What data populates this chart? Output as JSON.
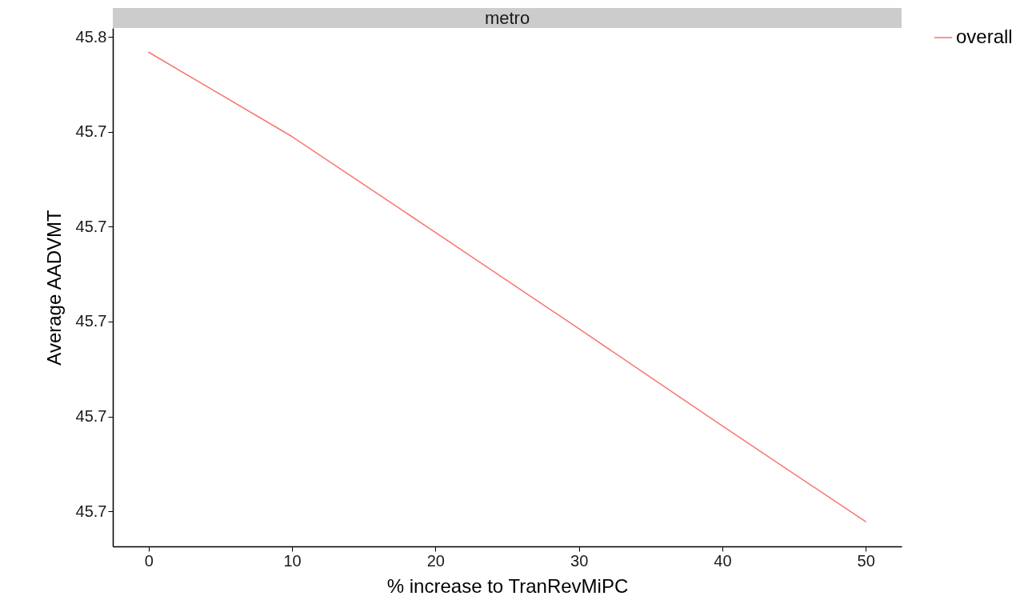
{
  "chart_data": {
    "type": "line",
    "title": "metro",
    "xlabel": "% increase to  TranRevMiPC",
    "ylabel": "Average  AADVMT",
    "legend": "right",
    "grid": false,
    "x": [
      0,
      10,
      20,
      30,
      40,
      50
    ],
    "series": [
      {
        "name": "overall",
        "color": "#f8766d",
        "values": [
          45.7568,
          45.739,
          45.7188,
          45.6985,
          45.678,
          45.6578
        ]
      }
    ],
    "xlim": [
      -2.5,
      52.5
    ],
    "xticks": [
      0,
      10,
      20,
      30,
      40,
      50
    ],
    "ylim": [
      45.6526,
      45.7619
    ],
    "yticks": [
      {
        "value": 45.76,
        "label": "45.8"
      },
      {
        "value": 45.74,
        "label": "45.7"
      },
      {
        "value": 45.72,
        "label": "45.7"
      },
      {
        "value": 45.7,
        "label": "45.7"
      },
      {
        "value": 45.68,
        "label": "45.7"
      },
      {
        "value": 45.66,
        "label": "45.7"
      }
    ]
  }
}
